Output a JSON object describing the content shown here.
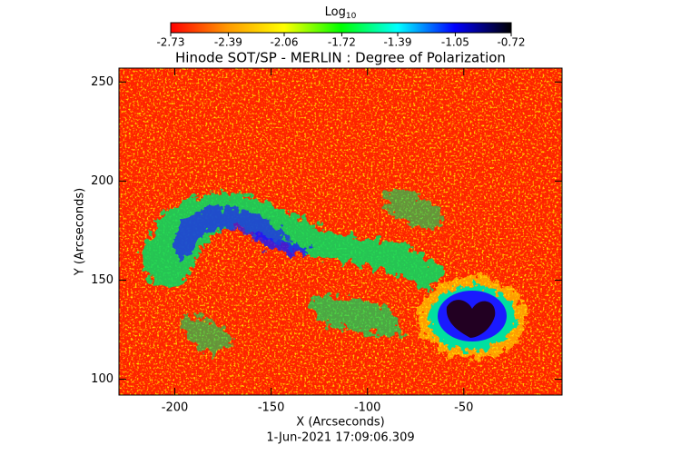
{
  "chart_data": {
    "type": "image",
    "title": "Hinode SOT/SP - MERLIN : Degree of Polarization",
    "subtitle": "1-Jun-2021 17:09:06.309",
    "x_label": "X (Arcseconds)",
    "y_label": "Y (Arcseconds)",
    "xlim": [
      -229,
      1
    ],
    "ylim": [
      92,
      257
    ],
    "xticks": [
      -200,
      -150,
      -100,
      -50
    ],
    "yticks": [
      100,
      150,
      200,
      250
    ],
    "colorbar_label": "Log",
    "colorbar_label_sub": "10",
    "colorbar_ticks": [
      -2.73,
      -2.39,
      -2.06,
      -1.72,
      -1.39,
      -1.05,
      -0.72
    ],
    "colormap": [
      "#ff0000",
      "#ff9900",
      "#ffff00",
      "#00ff00",
      "#00ffff",
      "#0000ff",
      "#000000"
    ]
  }
}
